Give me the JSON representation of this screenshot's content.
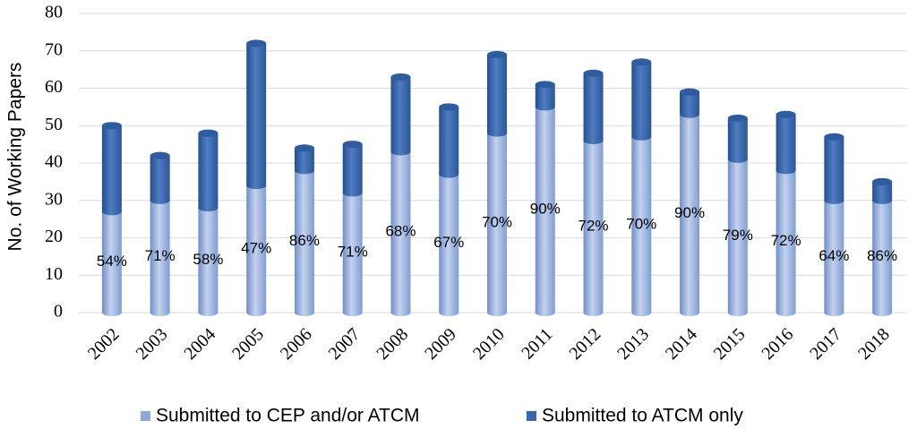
{
  "chart_data": {
    "type": "stacked-bar",
    "y_label": "No. of Working Papers",
    "categories": [
      "2002",
      "2003",
      "2004",
      "2005",
      "2006",
      "2007",
      "2008",
      "2009",
      "2010",
      "2011",
      "2012",
      "2013",
      "2014",
      "2015",
      "2016",
      "2017",
      "2018"
    ],
    "series": [
      {
        "name": "Submitted to CEP and/or ATCM",
        "color": "#8eaadb",
        "values": [
          27,
          30,
          28,
          34,
          38,
          32,
          43,
          37,
          48,
          55,
          46,
          47,
          53,
          41,
          38,
          30,
          30
        ]
      },
      {
        "name": "Submitted to ATCM only",
        "color": "#3a66ad",
        "values": [
          23,
          12,
          20,
          38,
          6,
          13,
          20,
          18,
          21,
          6,
          18,
          20,
          6,
          11,
          15,
          17,
          5
        ]
      }
    ],
    "annotations": [
      "54%",
      "71%",
      "58%",
      "47%",
      "86%",
      "71%",
      "68%",
      "67%",
      "70%",
      "90%",
      "72%",
      "70%",
      "90%",
      "79%",
      "72%",
      "64%",
      "86%"
    ],
    "ylim": [
      0,
      80
    ],
    "yticks": [
      0,
      10,
      20,
      30,
      40,
      50,
      60,
      70,
      80
    ],
    "grid": true,
    "legend": "bottom"
  }
}
